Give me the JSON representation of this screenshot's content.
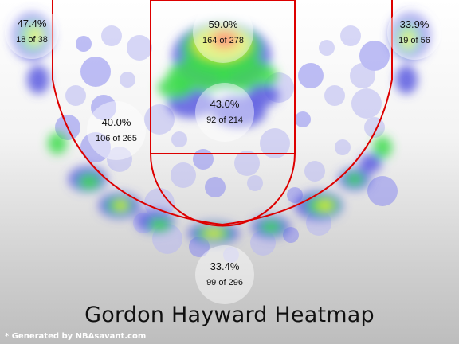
{
  "chart_data": {
    "type": "heatmap",
    "title": "Gordon Hayward Heatmap",
    "credit": "* Generated by NBAsavant.com",
    "zones": [
      {
        "id": "left-corner-three",
        "pct": "47.4%",
        "made": 18,
        "attempts": 38,
        "made_label": "18 of 38"
      },
      {
        "id": "restricted-area",
        "pct": "59.0%",
        "made": 164,
        "attempts": 278,
        "made_label": "164 of 278"
      },
      {
        "id": "right-corner-three",
        "pct": "33.9%",
        "made": 19,
        "attempts": 56,
        "made_label": "19 of 56"
      },
      {
        "id": "mid-range",
        "pct": "40.0%",
        "made": 106,
        "attempts": 265,
        "made_label": "106 of 265"
      },
      {
        "id": "paint-non-ra",
        "pct": "43.0%",
        "made": 92,
        "attempts": 214,
        "made_label": "92 of 214"
      },
      {
        "id": "above-break-three",
        "pct": "33.4%",
        "made": 99,
        "attempts": 296,
        "made_label": "99 of 296"
      }
    ],
    "colors": {
      "court_lines": "#dd0000",
      "heat_low": "#5b5be0",
      "heat_mid": "#3ddc4c",
      "heat_high": "#e8f020",
      "heat_peak": "#ff3a1a"
    }
  }
}
